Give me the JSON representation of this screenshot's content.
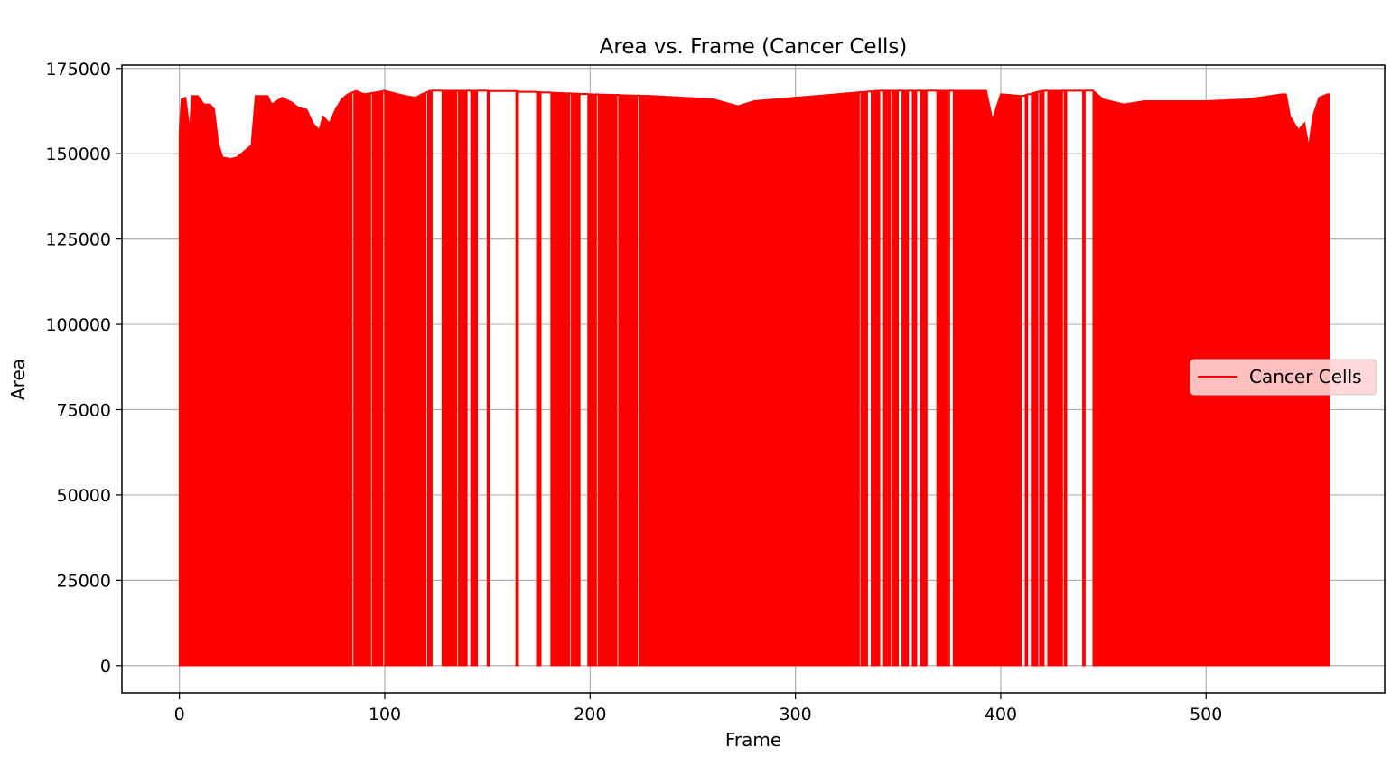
{
  "chart_data": {
    "type": "line",
    "title": "Area vs. Frame (Cancer Cells)",
    "xlabel": "Frame",
    "ylabel": "Area",
    "xlim": [
      -28,
      587
    ],
    "ylim": [
      -8000,
      176000
    ],
    "xticks": [
      0,
      100,
      200,
      300,
      400,
      500
    ],
    "yticks": [
      0,
      25000,
      50000,
      75000,
      100000,
      125000,
      150000,
      175000
    ],
    "grid": true,
    "legend_position": "center-right",
    "series": [
      {
        "name": "Cancer Cells",
        "color": "#ff0000",
        "x_range": [
          0,
          560
        ],
        "upper_envelope": [
          [
            0,
            156000
          ],
          [
            1,
            166000
          ],
          [
            3,
            166500
          ],
          [
            5,
            157000
          ],
          [
            6,
            167000
          ],
          [
            9,
            167000
          ],
          [
            12,
            164500
          ],
          [
            15,
            164500
          ],
          [
            17,
            163000
          ],
          [
            19,
            153000
          ],
          [
            21,
            149000
          ],
          [
            25,
            148500
          ],
          [
            28,
            149000
          ],
          [
            32,
            151000
          ],
          [
            35,
            152500
          ],
          [
            37,
            167000
          ],
          [
            43,
            167000
          ],
          [
            45,
            164500
          ],
          [
            50,
            166500
          ],
          [
            55,
            165000
          ],
          [
            58,
            163500
          ],
          [
            62,
            163000
          ],
          [
            65,
            159000
          ],
          [
            68,
            157000
          ],
          [
            70,
            161000
          ],
          [
            73,
            159000
          ],
          [
            76,
            163000
          ],
          [
            79,
            166000
          ],
          [
            82,
            167500
          ],
          [
            86,
            168500
          ],
          [
            90,
            167500
          ],
          [
            100,
            168500
          ],
          [
            110,
            167000
          ],
          [
            115,
            166500
          ],
          [
            118,
            167500
          ],
          [
            122,
            168500
          ],
          [
            160,
            168500
          ],
          [
            180,
            168000
          ],
          [
            200,
            167500
          ],
          [
            230,
            167000
          ],
          [
            260,
            166000
          ],
          [
            272,
            164000
          ],
          [
            280,
            165500
          ],
          [
            300,
            166500
          ],
          [
            320,
            167500
          ],
          [
            340,
            168500
          ],
          [
            380,
            168500
          ],
          [
            393,
            168500
          ],
          [
            396,
            160000
          ],
          [
            400,
            167500
          ],
          [
            410,
            167000
          ],
          [
            420,
            168500
          ],
          [
            445,
            168500
          ],
          [
            450,
            166000
          ],
          [
            460,
            164500
          ],
          [
            470,
            165500
          ],
          [
            490,
            165500
          ],
          [
            500,
            165500
          ],
          [
            520,
            166000
          ],
          [
            537,
            167500
          ],
          [
            539,
            167500
          ],
          [
            541,
            161000
          ],
          [
            545,
            157000
          ],
          [
            548,
            159000
          ],
          [
            550,
            152000
          ],
          [
            552,
            161000
          ],
          [
            555,
            166500
          ],
          [
            559,
            167500
          ],
          [
            560,
            167500
          ]
        ],
        "gap_intervals": [
          [
            84,
            85
          ],
          [
            93,
            94
          ],
          [
            99,
            100
          ],
          [
            120,
            121
          ],
          [
            123,
            128
          ],
          [
            135,
            136
          ],
          [
            140,
            142
          ],
          [
            145,
            150
          ],
          [
            151,
            164
          ],
          [
            165,
            174
          ],
          [
            176,
            181
          ],
          [
            190,
            191
          ],
          [
            195,
            199
          ],
          [
            203,
            204
          ],
          [
            213,
            214
          ],
          [
            223,
            224
          ],
          [
            331,
            332
          ],
          [
            335,
            337
          ],
          [
            341,
            343
          ],
          [
            346,
            347
          ],
          [
            350,
            352
          ],
          [
            355,
            357
          ],
          [
            359,
            361
          ],
          [
            364,
            369
          ],
          [
            375,
            377
          ],
          [
            410,
            412
          ],
          [
            413,
            415
          ],
          [
            418,
            419
          ],
          [
            421,
            423
          ],
          [
            430,
            431
          ],
          [
            432,
            440
          ],
          [
            441,
            445
          ]
        ]
      }
    ]
  }
}
